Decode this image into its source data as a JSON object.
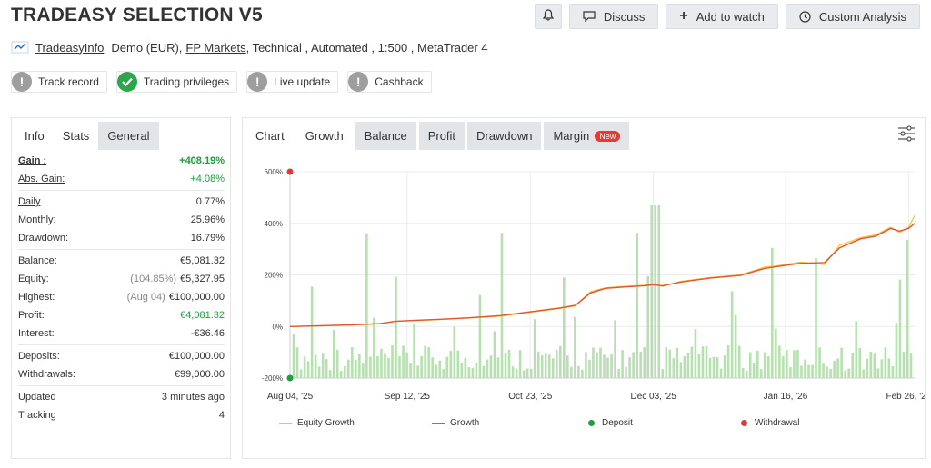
{
  "title": "TRADEASY SELECTION V5",
  "actions": {
    "discuss": "Discuss",
    "add_to_watch": "Add to watch",
    "custom_analysis": "Custom Analysis"
  },
  "subline": {
    "author": "TradeasyInfo",
    "account": "Demo (EUR),",
    "broker": "FP Markets",
    "rest": ", Technical , Automated , 1:500 , MetaTrader 4"
  },
  "badges": [
    "Track record",
    "Trading privileges",
    "Live update",
    "Cashback"
  ],
  "left_tabs": [
    "Info",
    "Stats",
    "General"
  ],
  "stats": {
    "gain_label": "Gain :",
    "gain": "+408.19%",
    "abs_gain_label": "Abs. Gain:",
    "abs_gain": "+4.08%",
    "daily_label": "Daily",
    "daily": "0.77%",
    "monthly_label": "Monthly:",
    "monthly": "25.96%",
    "drawdown_label": "Drawdown:",
    "drawdown": "16.79%",
    "balance_label": "Balance:",
    "balance": "€5,081.32",
    "equity_label": "Equity:",
    "equity_pct": "(104.85%)",
    "equity": "€5,327.95",
    "highest_label": "Highest:",
    "highest_date": "(Aug 04)",
    "highest": "€100,000.00",
    "profit_label": "Profit:",
    "profit": "€4,081.32",
    "interest_label": "Interest:",
    "interest": "-€36.46",
    "deposits_label": "Deposits:",
    "deposits": "€100,000.00",
    "withdrawals_label": "Withdrawals:",
    "withdrawals": "€99,000.00",
    "updated_label": "Updated",
    "updated": "3 minutes ago",
    "tracking_label": "Tracking",
    "tracking": "4"
  },
  "chart_tabs": {
    "chart": "Chart",
    "growth": "Growth",
    "balance": "Balance",
    "profit": "Profit",
    "drawdown": "Drawdown",
    "margin": "Margin",
    "new": "New"
  },
  "colors": {
    "equity": "#f5c242",
    "growth": "#e0572e",
    "deposit": "#1e9e3c",
    "withdrawal": "#e53935",
    "bars": "#b7e0b0"
  },
  "chart_data": {
    "type": "line",
    "ylim": [
      -200,
      600
    ],
    "yticks": [
      "600%",
      "400%",
      "200%",
      "0%",
      "-200%"
    ],
    "ytick_values": [
      600,
      400,
      200,
      0,
      -200
    ],
    "xticks": [
      "Aug 04, '25",
      "Sep 12, '25",
      "Oct 23, '25",
      "Dec 03, '25",
      "Jan 16, '26",
      "Feb 26, '26"
    ],
    "xtick_days": [
      0,
      39,
      80,
      121,
      165,
      206
    ],
    "x_days_total": 208,
    "series": [
      {
        "name": "Equity Growth",
        "x": [
          0,
          10,
          20,
          30,
          35,
          40,
          50,
          60,
          70,
          80,
          90,
          95,
          100,
          105,
          110,
          118,
          121,
          124,
          130,
          140,
          150,
          158,
          162,
          170,
          178,
          183,
          190,
          195,
          200,
          203,
          206,
          208
        ],
        "y": [
          0,
          2,
          5,
          10,
          20,
          22,
          27,
          33,
          40,
          55,
          70,
          80,
          135,
          150,
          155,
          160,
          165,
          155,
          175,
          190,
          200,
          230,
          235,
          250,
          240,
          315,
          345,
          355,
          385,
          365,
          385,
          430
        ]
      },
      {
        "name": "Growth",
        "x": [
          0,
          10,
          20,
          30,
          35,
          40,
          50,
          60,
          70,
          80,
          90,
          95,
          100,
          105,
          110,
          118,
          121,
          124,
          130,
          140,
          150,
          158,
          162,
          170,
          178,
          183,
          190,
          195,
          200,
          203,
          206,
          208
        ],
        "y": [
          0,
          3,
          6,
          11,
          20,
          23,
          28,
          34,
          42,
          57,
          72,
          82,
          130,
          148,
          152,
          158,
          162,
          158,
          172,
          188,
          198,
          225,
          232,
          245,
          248,
          305,
          340,
          350,
          380,
          370,
          380,
          400
        ]
      }
    ],
    "bars_legend": "",
    "deposit": {
      "x": 0,
      "y": -200
    },
    "withdrawal": {
      "x": 0,
      "y": 600
    },
    "legend": [
      "Equity Growth",
      "Growth",
      "Deposit",
      "Withdrawal"
    ]
  }
}
